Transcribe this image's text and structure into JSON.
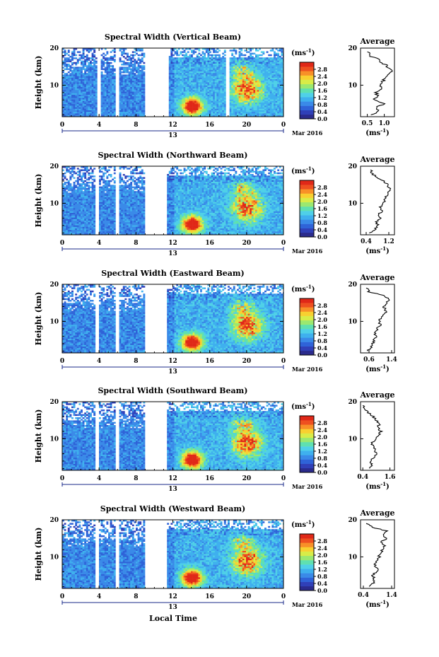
{
  "figure": {
    "xlabel": "Local Time",
    "date_label": "Mar 2016",
    "day_label": "13",
    "avg_title": "Average",
    "avg_xlabel_base": "(ms",
    "avg_xlabel_exp": "-1",
    "avg_xlabel_close": ")",
    "ylabel": "Height (km)",
    "cb_unit_base": "(ms",
    "cb_unit_exp": "-1",
    "cb_unit_close": ")",
    "colors": [
      "#2b2b8c",
      "#3040b8",
      "#2f63d8",
      "#3a8ae8",
      "#3fb0ee",
      "#4fd0e8",
      "#5fe0b0",
      "#9be870",
      "#d8ec48",
      "#f8d030",
      "#f89028",
      "#ee5020",
      "#e02818"
    ]
  },
  "chart_data": [
    {
      "type": "heatmap",
      "title": "Spectral Width (Vertical Beam)",
      "x_ticks": [
        "0",
        "4",
        "8",
        "12",
        "16",
        "20",
        "0"
      ],
      "y_ticks": [
        "20",
        "10"
      ],
      "xlim": [
        0,
        24
      ],
      "ylim": [
        1.5,
        20
      ],
      "colorbar": {
        "ticks": [
          "2.8",
          "2.4",
          "2.0",
          "1.6",
          "1.2",
          "0.8",
          "0.4",
          "0.0"
        ],
        "range": [
          0,
          3.2
        ]
      },
      "data_gaps_hours": [
        [
          3.6,
          4.0
        ],
        [
          5.6,
          6.0
        ],
        [
          8.8,
          11.4
        ],
        [
          17.7,
          18.0
        ]
      ],
      "average_profile": {
        "xlim": [
          0.3,
          1.3
        ],
        "x_ticks": [
          "0.5",
          "1.0"
        ],
        "y_ticks": [
          "20",
          "10"
        ],
        "height_km": [
          2,
          3,
          4,
          5,
          6,
          7,
          8,
          9,
          10,
          11,
          12,
          13,
          14,
          15,
          16,
          17,
          18,
          19
        ],
        "width_ms": [
          0.6,
          0.85,
          0.75,
          1.0,
          0.7,
          0.8,
          0.75,
          0.9,
          0.85,
          0.95,
          1.05,
          1.15,
          1.2,
          1.1,
          0.95,
          0.8,
          0.55,
          0.5
        ]
      }
    },
    {
      "type": "heatmap",
      "title": "Spectral Width (Northward Beam)",
      "x_ticks": [
        "0",
        "4",
        "8",
        "12",
        "16",
        "20",
        "0"
      ],
      "y_ticks": [
        "20",
        "10"
      ],
      "xlim": [
        0,
        24
      ],
      "ylim": [
        1.5,
        20
      ],
      "colorbar": {
        "ticks": [
          "2.8",
          "2.4",
          "2.0",
          "1.6",
          "1.2",
          "0.8",
          "0.4",
          "0.0"
        ],
        "range": [
          0,
          3.2
        ]
      },
      "data_gaps_hours": [
        [
          3.4,
          3.8
        ],
        [
          5.6,
          6.0
        ],
        [
          8.8,
          11.2
        ]
      ],
      "average_profile": {
        "xlim": [
          0.2,
          1.4
        ],
        "x_ticks": [
          "0.4",
          "1.2"
        ],
        "y_ticks": [
          "20",
          "10"
        ],
        "height_km": [
          2,
          3,
          4,
          5,
          6,
          7,
          8,
          9,
          10,
          11,
          12,
          13,
          14,
          15,
          16,
          17,
          18,
          19
        ],
        "width_ms": [
          0.5,
          0.7,
          0.8,
          0.75,
          0.9,
          0.85,
          0.95,
          0.9,
          1.0,
          1.05,
          1.1,
          1.2,
          1.25,
          1.15,
          1.0,
          0.8,
          0.6,
          0.55
        ]
      }
    },
    {
      "type": "heatmap",
      "title": "Spectral Width (Eastward Beam)",
      "x_ticks": [
        "0",
        "4",
        "8",
        "12",
        "16",
        "20",
        "0"
      ],
      "y_ticks": [
        "20",
        "10"
      ],
      "xlim": [
        0,
        24
      ],
      "ylim": [
        1.5,
        20
      ],
      "colorbar": {
        "ticks": [
          "2.8",
          "2.4",
          "2.0",
          "1.6",
          "1.2",
          "0.8",
          "0.4",
          "0.0"
        ],
        "range": [
          0,
          3.2
        ]
      },
      "data_gaps_hours": [
        [
          3.4,
          3.8
        ],
        [
          5.6,
          6.0
        ],
        [
          8.8,
          11.2
        ]
      ],
      "average_profile": {
        "xlim": [
          0.3,
          1.5
        ],
        "x_ticks": [
          "0.6",
          "1.4"
        ],
        "y_ticks": [
          "20",
          "10"
        ],
        "height_km": [
          2,
          3,
          4,
          5,
          6,
          7,
          8,
          9,
          10,
          11,
          12,
          13,
          14,
          15,
          16,
          17,
          18,
          19
        ],
        "width_ms": [
          0.55,
          0.7,
          0.75,
          0.8,
          0.85,
          0.8,
          0.9,
          1.0,
          0.95,
          1.05,
          1.15,
          1.2,
          1.1,
          1.25,
          1.3,
          1.1,
          0.6,
          0.5
        ]
      }
    },
    {
      "type": "heatmap",
      "title": "Spectral Width (Southward Beam)",
      "x_ticks": [
        "0",
        "4",
        "8",
        "12",
        "16",
        "20",
        "0"
      ],
      "y_ticks": [
        "20",
        "10"
      ],
      "xlim": [
        0,
        24
      ],
      "ylim": [
        1.5,
        20
      ],
      "colorbar": {
        "ticks": [
          "2.8",
          "2.4",
          "2.0",
          "1.6",
          "1.2",
          "0.8",
          "0.4",
          "0.0"
        ],
        "range": [
          0,
          3.2
        ]
      },
      "data_gaps_hours": [
        [
          3.4,
          3.8
        ],
        [
          5.6,
          6.0
        ],
        [
          8.8,
          11.2
        ]
      ],
      "average_profile": {
        "xlim": [
          0.3,
          1.8
        ],
        "x_ticks": [
          "0.4",
          "1.6"
        ],
        "y_ticks": [
          "20",
          "10"
        ],
        "height_km": [
          2,
          3,
          4,
          5,
          6,
          7,
          8,
          9,
          10,
          11,
          12,
          13,
          14,
          15,
          16,
          17,
          18,
          19
        ],
        "width_ms": [
          0.7,
          0.8,
          0.75,
          0.9,
          1.0,
          0.95,
          0.85,
          0.8,
          1.0,
          1.1,
          1.2,
          1.05,
          1.15,
          1.0,
          0.85,
          0.65,
          0.5,
          0.4
        ]
      }
    },
    {
      "type": "heatmap",
      "title": "Spectral Width (Westward Beam)",
      "x_ticks": [
        "0",
        "4",
        "8",
        "12",
        "16",
        "20",
        "0"
      ],
      "y_ticks": [
        "20",
        "10"
      ],
      "xlim": [
        0,
        24
      ],
      "ylim": [
        1.5,
        20
      ],
      "colorbar": {
        "ticks": [
          "2.8",
          "2.4",
          "2.0",
          "1.6",
          "1.2",
          "0.8",
          "0.4",
          "0.0"
        ],
        "range": [
          0,
          3.2
        ]
      },
      "data_gaps_hours": [
        [
          3.4,
          3.8
        ],
        [
          5.6,
          6.0
        ],
        [
          8.8,
          11.2
        ]
      ],
      "average_profile": {
        "xlim": [
          0.3,
          1.5
        ],
        "x_ticks": [
          "0.4",
          "1.4"
        ],
        "y_ticks": [
          "20",
          "10"
        ],
        "height_km": [
          2,
          3,
          4,
          5,
          6,
          7,
          8,
          9,
          10,
          11,
          12,
          13,
          14,
          15,
          16,
          17,
          18,
          19
        ],
        "width_ms": [
          0.6,
          0.75,
          0.8,
          0.7,
          0.85,
          0.9,
          0.8,
          0.85,
          0.95,
          1.0,
          1.1,
          1.15,
          1.05,
          1.2,
          1.1,
          1.25,
          0.7,
          0.5
        ]
      }
    }
  ]
}
